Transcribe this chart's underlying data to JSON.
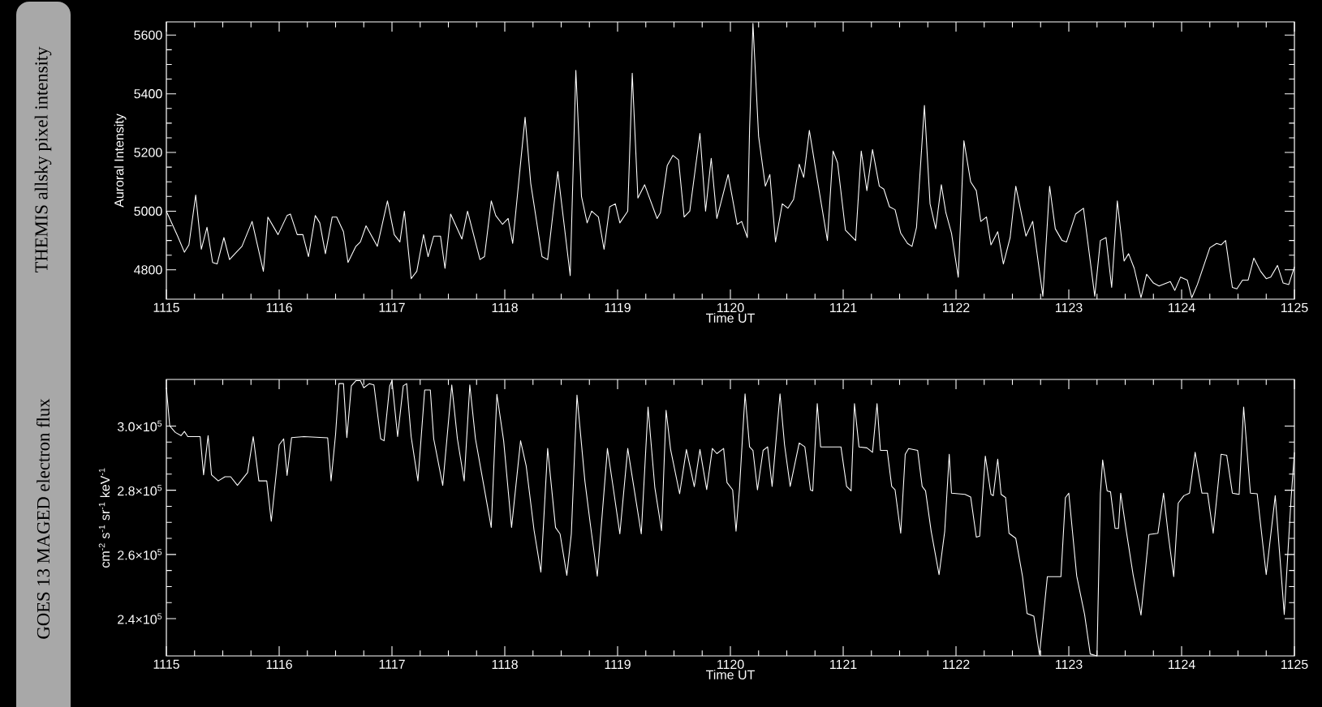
{
  "chart_data": [
    {
      "type": "line",
      "title": "THEMIS allsky pixel intensity",
      "xlabel": "Time UT",
      "ylabel": "Auroral Intensity",
      "x": [
        1115.0,
        1115.1,
        1115.16,
        1115.2,
        1115.26,
        1115.31,
        1115.36,
        1115.41,
        1115.45,
        1115.51,
        1115.56,
        1115.62,
        1115.67,
        1115.76,
        1115.86,
        1115.9,
        1115.99,
        1116.07,
        1116.1,
        1116.16,
        1116.21,
        1116.26,
        1116.32,
        1116.36,
        1116.41,
        1116.47,
        1116.51,
        1116.57,
        1116.61,
        1116.68,
        1116.72,
        1116.77,
        1116.87,
        1116.96,
        1117.02,
        1117.07,
        1117.11,
        1117.17,
        1117.22,
        1117.28,
        1117.32,
        1117.37,
        1117.43,
        1117.47,
        1117.52,
        1117.62,
        1117.67,
        1117.78,
        1117.82,
        1117.88,
        1117.92,
        1117.98,
        1118.03,
        1118.07,
        1118.18,
        1118.23,
        1118.33,
        1118.38,
        1118.47,
        1118.58,
        1118.63,
        1118.68,
        1118.73,
        1118.77,
        1118.83,
        1118.88,
        1118.93,
        1118.98,
        1119.02,
        1119.09,
        1119.13,
        1119.18,
        1119.24,
        1119.35,
        1119.38,
        1119.44,
        1119.49,
        1119.54,
        1119.59,
        1119.64,
        1119.73,
        1119.78,
        1119.83,
        1119.88,
        1119.98,
        1120.06,
        1120.1,
        1120.15,
        1120.17,
        1120.2,
        1120.25,
        1120.31,
        1120.35,
        1120.4,
        1120.46,
        1120.51,
        1120.56,
        1120.61,
        1120.65,
        1120.7,
        1120.78,
        1120.86,
        1120.91,
        1120.95,
        1121.02,
        1121.11,
        1121.16,
        1121.21,
        1121.26,
        1121.32,
        1121.36,
        1121.41,
        1121.46,
        1121.51,
        1121.57,
        1121.61,
        1121.65,
        1121.72,
        1121.77,
        1121.82,
        1121.87,
        1121.91,
        1121.96,
        1122.02,
        1122.07,
        1122.13,
        1122.18,
        1122.22,
        1122.27,
        1122.31,
        1122.37,
        1122.42,
        1122.48,
        1122.53,
        1122.62,
        1122.68,
        1122.77,
        1122.83,
        1122.88,
        1122.94,
        1122.98,
        1123.06,
        1123.13,
        1123.23,
        1123.28,
        1123.33,
        1123.38,
        1123.43,
        1123.49,
        1123.53,
        1123.58,
        1123.64,
        1123.69,
        1123.75,
        1123.8,
        1123.9,
        1123.94,
        1123.99,
        1124.05,
        1124.09,
        1124.14,
        1124.25,
        1124.31,
        1124.35,
        1124.39,
        1124.45,
        1124.49,
        1124.54,
        1124.59,
        1124.64,
        1124.7,
        1124.75,
        1124.79,
        1124.85,
        1124.9,
        1124.95,
        1125.0
      ],
      "series": [
        {
          "color": "#ffffff",
          "values": [
            5000,
            4915,
            4860,
            4885,
            5055,
            4870,
            4945,
            4825,
            4820,
            4910,
            4835,
            4860,
            4880,
            4965,
            4795,
            4980,
            4920,
            4985,
            4990,
            4920,
            4920,
            4845,
            4985,
            4960,
            4855,
            4980,
            4980,
            4930,
            4825,
            4880,
            4895,
            4950,
            4880,
            5035,
            4920,
            4895,
            5000,
            4770,
            4795,
            4920,
            4845,
            4915,
            4915,
            4805,
            4990,
            4905,
            5000,
            4835,
            4845,
            5035,
            4985,
            4955,
            4975,
            4890,
            5320,
            5095,
            4845,
            4835,
            5135,
            4780,
            5480,
            5050,
            4960,
            5000,
            4980,
            4870,
            5015,
            5025,
            4960,
            5000,
            5470,
            5045,
            5090,
            4975,
            4995,
            5155,
            5190,
            5175,
            4980,
            5000,
            5265,
            5000,
            5180,
            4975,
            5125,
            4955,
            4965,
            4910,
            5280,
            5640,
            5255,
            5085,
            5125,
            4895,
            5025,
            5010,
            5040,
            5160,
            5115,
            5275,
            5085,
            4900,
            5205,
            5165,
            4935,
            4900,
            5205,
            5070,
            5210,
            5085,
            5075,
            5015,
            5005,
            4925,
            4890,
            4880,
            4945,
            5360,
            5025,
            4940,
            5090,
            4995,
            4925,
            4775,
            5240,
            5100,
            5070,
            4965,
            4980,
            4885,
            4930,
            4820,
            4910,
            5085,
            4915,
            4965,
            4710,
            5085,
            4940,
            4900,
            4895,
            4990,
            5010,
            4710,
            4900,
            4910,
            4740,
            5035,
            4830,
            4855,
            4805,
            4705,
            4785,
            4755,
            4745,
            4760,
            4730,
            4775,
            4765,
            4705,
            4750,
            4875,
            4890,
            4885,
            4900,
            4740,
            4735,
            4765,
            4765,
            4840,
            4795,
            4770,
            4775,
            4815,
            4755,
            4750,
            4810
          ]
        }
      ],
      "xlim": [
        1115,
        1125
      ],
      "ylim": [
        4700,
        5645
      ],
      "xticks": [
        1115,
        1116,
        1117,
        1118,
        1119,
        1120,
        1121,
        1122,
        1123,
        1124,
        1125
      ],
      "yticks": [
        4800,
        5000,
        5200,
        5400,
        5600
      ]
    },
    {
      "type": "line",
      "title": "GOES 13 MAGED electron flux",
      "xlabel": "Time UT",
      "ylabel": "cm$^{-2}$ s$^{-1}$ sr$^{-1}$ keV$^{-1}$",
      "x": [
        1115.0,
        1115.03,
        1115.08,
        1115.13,
        1115.16,
        1115.19,
        1115.3,
        1115.33,
        1115.37,
        1115.4,
        1115.46,
        1115.52,
        1115.57,
        1115.63,
        1115.72,
        1115.77,
        1115.82,
        1115.89,
        1115.93,
        1116.0,
        1116.04,
        1116.07,
        1116.11,
        1116.22,
        1116.43,
        1116.46,
        1116.5,
        1116.53,
        1116.57,
        1116.6,
        1116.64,
        1116.68,
        1116.72,
        1116.75,
        1116.8,
        1116.84,
        1116.9,
        1116.93,
        1116.98,
        1117.0,
        1117.05,
        1117.1,
        1117.13,
        1117.17,
        1117.23,
        1117.29,
        1117.34,
        1117.37,
        1117.45,
        1117.53,
        1117.58,
        1117.64,
        1117.69,
        1117.74,
        1117.81,
        1117.88,
        1117.93,
        1117.99,
        1118.06,
        1118.14,
        1118.19,
        1118.26,
        1118.32,
        1118.38,
        1118.45,
        1118.49,
        1118.55,
        1118.59,
        1118.64,
        1118.71,
        1118.76,
        1118.82,
        1118.91,
        1118.96,
        1119.02,
        1119.09,
        1119.14,
        1119.21,
        1119.27,
        1119.33,
        1119.39,
        1119.43,
        1119.47,
        1119.55,
        1119.61,
        1119.68,
        1119.73,
        1119.79,
        1119.84,
        1119.88,
        1119.94,
        1119.97,
        1120.02,
        1120.05,
        1120.08,
        1120.13,
        1120.17,
        1120.2,
        1120.24,
        1120.29,
        1120.33,
        1120.37,
        1120.44,
        1120.48,
        1120.53,
        1120.61,
        1120.66,
        1120.71,
        1120.73,
        1120.77,
        1120.8,
        1120.98,
        1121.03,
        1121.07,
        1121.1,
        1121.14,
        1121.21,
        1121.26,
        1121.3,
        1121.33,
        1121.39,
        1121.43,
        1121.46,
        1121.51,
        1121.55,
        1121.58,
        1121.66,
        1121.7,
        1121.73,
        1121.78,
        1121.85,
        1121.9,
        1121.94,
        1121.96,
        1122.08,
        1122.13,
        1122.18,
        1122.21,
        1122.26,
        1122.31,
        1122.33,
        1122.37,
        1122.4,
        1122.44,
        1122.47,
        1122.53,
        1122.59,
        1122.63,
        1122.69,
        1122.74,
        1122.81,
        1122.86,
        1122.93,
        1122.97,
        1123.0,
        1123.07,
        1123.14,
        1123.19,
        1123.25,
        1123.28,
        1123.3,
        1123.34,
        1123.37,
        1123.41,
        1123.44,
        1123.46,
        1123.51,
        1123.57,
        1123.64,
        1123.71,
        1123.79,
        1123.84,
        1123.88,
        1123.93,
        1123.97,
        1124.02,
        1124.07,
        1124.12,
        1124.18,
        1124.23,
        1124.28,
        1124.35,
        1124.4,
        1124.45,
        1124.51,
        1124.55,
        1124.61,
        1124.67,
        1124.75,
        1124.83,
        1124.91,
        1124.97,
        1125.0
      ],
      "series": [
        {
          "color": "#ffffff",
          "values": [
            311900,
            300000,
            298000,
            297000,
            298300,
            296700,
            296700,
            284800,
            297000,
            284800,
            282900,
            284200,
            284200,
            281500,
            285500,
            296700,
            282900,
            282900,
            270300,
            294100,
            296000,
            284600,
            296400,
            296700,
            296300,
            282900,
            297400,
            313200,
            313200,
            296400,
            312500,
            314100,
            314100,
            311900,
            313200,
            312800,
            296000,
            295400,
            312500,
            314100,
            296700,
            312500,
            313200,
            296700,
            282900,
            311200,
            311200,
            296000,
            281500,
            312800,
            296000,
            282900,
            312800,
            296000,
            282200,
            268400,
            309900,
            295400,
            268400,
            295400,
            287500,
            267400,
            254500,
            293000,
            268400,
            266400,
            253500,
            266400,
            309600,
            282900,
            269000,
            253200,
            293000,
            281100,
            266400,
            293000,
            281900,
            266400,
            305900,
            280900,
            267400,
            304900,
            292700,
            278900,
            292700,
            281100,
            292700,
            280200,
            293000,
            291400,
            293000,
            282400,
            280100,
            267200,
            280100,
            310000,
            293500,
            292400,
            280100,
            292400,
            293500,
            281200,
            310000,
            294100,
            281200,
            294700,
            293500,
            280100,
            279800,
            307000,
            293500,
            293500,
            281200,
            279800,
            307000,
            293500,
            293200,
            291800,
            307000,
            292400,
            292400,
            281200,
            280100,
            266600,
            291200,
            293000,
            292400,
            281200,
            279800,
            267200,
            253700,
            267200,
            291200,
            279100,
            278700,
            277900,
            265400,
            265700,
            290600,
            278700,
            278300,
            289700,
            278700,
            277700,
            266600,
            265000,
            253100,
            241600,
            240800,
            228700,
            253100,
            253100,
            253100,
            277700,
            279100,
            253300,
            241300,
            229000,
            228400,
            279100,
            289400,
            279800,
            279500,
            268100,
            268100,
            279100,
            267200,
            253700,
            241100,
            266200,
            266600,
            279100,
            266600,
            253100,
            276000,
            278300,
            279100,
            291800,
            279100,
            279100,
            266600,
            291200,
            290900,
            279100,
            278700,
            305900,
            279100,
            278900,
            253700,
            278300,
            241300,
            277100,
            291800
          ]
        }
      ],
      "xlim": [
        1115,
        1125
      ],
      "ylim": [
        228400,
        314500
      ],
      "xticks": [
        1115,
        1116,
        1117,
        1118,
        1119,
        1120,
        1121,
        1122,
        1123,
        1124,
        1125
      ],
      "yticks": [
        {
          "value": 240000,
          "label": "2.4×10$^{5}$"
        },
        {
          "value": 260000,
          "label": "2.6×10$^{5}$"
        },
        {
          "value": 280000,
          "label": "2.8×10$^{5}$"
        },
        {
          "value": 300000,
          "label": "3.0×10$^{5}$"
        }
      ]
    }
  ]
}
